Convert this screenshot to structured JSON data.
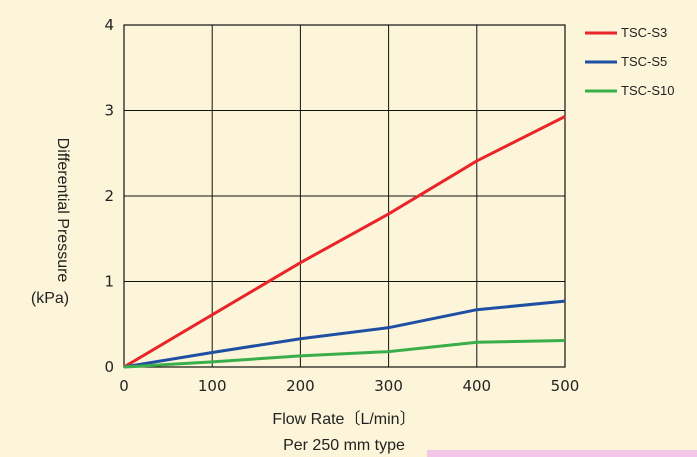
{
  "chart_data": {
    "type": "line",
    "x": [
      0,
      100,
      200,
      300,
      400,
      500
    ],
    "series": [
      {
        "name": "TSC-S3",
        "color": "#e8262a",
        "values": [
          0,
          0.61,
          1.22,
          1.79,
          2.41,
          2.93
        ]
      },
      {
        "name": "TSC-S5",
        "color": "#1f4fa3",
        "values": [
          0,
          0.17,
          0.33,
          0.46,
          0.67,
          0.77
        ]
      },
      {
        "name": "TSC-S10",
        "color": "#3aae4a",
        "values": [
          0,
          0.06,
          0.13,
          0.18,
          0.29,
          0.31
        ]
      }
    ],
    "xlabel": "Flow Rate〔L/min〕",
    "ylabel": "Differential Pressure",
    "yunit": "(kPa)",
    "note": "Per 250 mm type",
    "xlim": [
      0,
      500
    ],
    "ylim": [
      0,
      4
    ],
    "xticks": [
      "0",
      "100",
      "200",
      "300",
      "400",
      "500"
    ],
    "yticks": [
      "0",
      "1",
      "2",
      "3",
      "4"
    ],
    "grid": true,
    "legend_position": "top-right"
  },
  "colors": {
    "background": "#fdf5d9",
    "plot_background": "#fdf5d9",
    "note_box": "#f2c6e6"
  }
}
